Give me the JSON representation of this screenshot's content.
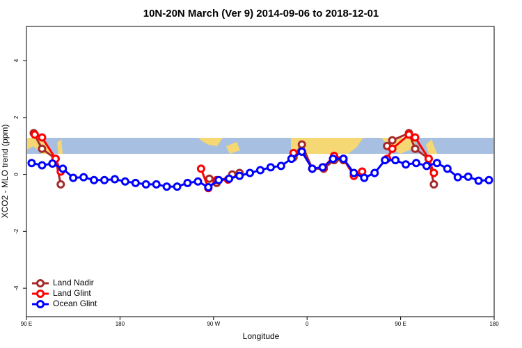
{
  "chart_data": {
    "type": "line",
    "title": "10N-20N March (Ver 9)   2014-09-06 to 2018-12-01",
    "x_label": "Longitude",
    "y_label": "XCO2 - MLO trend (ppm)",
    "xlim": [
      90,
      540
    ],
    "ylim": [
      -5,
      5.2
    ],
    "xticks": [
      {
        "value": 90,
        "label": "90 E"
      },
      {
        "value": 180,
        "label": "180"
      },
      {
        "value": 270,
        "label": "90 W"
      },
      {
        "value": 360,
        "label": "0"
      },
      {
        "value": 450,
        "label": "90 E"
      },
      {
        "value": 540,
        "label": "180"
      }
    ],
    "yticks": [
      -4,
      -2,
      0,
      2,
      4
    ],
    "legend": "bottomleft",
    "series": [
      {
        "name": "Land Nadir",
        "color": "#a52a2a",
        "x": [
          97,
          105,
          118,
          123,
          null,
          266,
          273,
          288,
          295,
          null,
          347,
          355,
          365,
          376,
          386,
          395,
          null,
          437,
          442,
          458,
          464,
          477,
          482
        ],
        "values": [
          1.45,
          0.9,
          0.55,
          -0.35,
          null,
          -0.15,
          -0.3,
          0.0,
          0.05,
          null,
          0.6,
          1.05,
          0.2,
          0.2,
          0.5,
          0.5,
          null,
          1.0,
          1.2,
          1.45,
          0.9,
          0.55,
          -0.35
        ]
      },
      {
        "name": "Land Glint",
        "color": "#ff0000",
        "x": [
          98,
          105,
          118,
          123,
          null,
          258,
          265,
          273,
          284,
          null,
          347,
          355,
          365,
          376,
          386,
          395,
          405,
          413,
          null,
          437,
          442,
          458,
          464,
          477,
          482
        ],
        "values": [
          1.4,
          1.3,
          0.55,
          0.1,
          null,
          0.2,
          -0.48,
          -0.2,
          -0.18,
          null,
          0.75,
          0.8,
          0.2,
          0.25,
          0.65,
          0.55,
          -0.05,
          0.1,
          null,
          0.55,
          0.9,
          1.4,
          1.3,
          0.55,
          0.05
        ]
      },
      {
        "name": "Ocean Glint",
        "color": "#0000ff",
        "x": [
          95,
          105,
          115,
          125,
          135,
          145,
          155,
          165,
          175,
          185,
          195,
          205,
          215,
          225,
          235,
          245,
          255,
          265,
          275,
          285,
          295,
          305,
          315,
          325,
          335,
          345,
          355,
          365,
          375,
          385,
          395,
          405,
          415,
          425,
          435,
          445,
          455,
          465,
          475,
          485,
          495,
          505,
          515,
          525,
          535
        ],
        "values": [
          0.4,
          0.32,
          0.38,
          0.2,
          -0.12,
          -0.1,
          -0.2,
          -0.2,
          -0.17,
          -0.25,
          -0.3,
          -0.35,
          -0.35,
          -0.43,
          -0.43,
          -0.3,
          -0.25,
          -0.45,
          -0.2,
          -0.15,
          -0.05,
          0.05,
          0.15,
          0.25,
          0.3,
          0.55,
          0.8,
          0.2,
          0.25,
          0.55,
          0.55,
          0.05,
          -0.12,
          0.05,
          0.5,
          0.5,
          0.35,
          0.4,
          0.3,
          0.4,
          0.2,
          -0.1,
          -0.08,
          -0.22,
          -0.2
        ]
      }
    ]
  }
}
